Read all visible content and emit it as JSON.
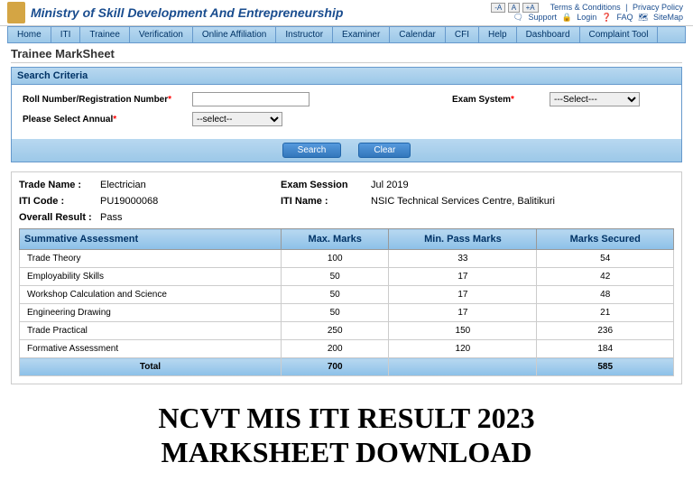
{
  "header": {
    "ministry": "Ministry of Skill Development And Entrepreneurship",
    "links": {
      "terms": "Terms & Conditions",
      "privacy": "Privacy Policy",
      "support": "Support",
      "login": "Login",
      "faq": "FAQ",
      "sitemap": "SiteMap"
    },
    "font_minus": "-A",
    "font_normal": "A",
    "font_plus": "+A"
  },
  "nav": {
    "items": [
      "Home",
      "ITI",
      "Trainee",
      "Verification",
      "Online Affiliation",
      "Instructor",
      "Examiner",
      "Calendar",
      "CFI",
      "Help",
      "Dashboard",
      "Complaint Tool"
    ]
  },
  "page": {
    "title": "Trainee MarkSheet"
  },
  "search": {
    "header": "Search Criteria",
    "roll_label": "Roll Number/Registration Number",
    "exam_label": "Exam System",
    "exam_placeholder": "---Select---",
    "annual_label": "Please Select Annual",
    "annual_placeholder": "--select--",
    "search_btn": "Search",
    "clear_btn": "Clear"
  },
  "result": {
    "trade_label": "Trade Name :",
    "trade_value": "Electrician",
    "session_label": "Exam Session",
    "session_value": "Jul 2019",
    "iti_code_label": "ITI Code :",
    "iti_code_value": "PU19000068",
    "iti_name_label": "ITI Name :",
    "iti_name_value": "NSIC Technical Services Centre, Balitikuri",
    "overall_label": "Overall Result :",
    "overall_value": "Pass"
  },
  "table": {
    "headers": {
      "subject": "Summative Assessment",
      "max": "Max. Marks",
      "min": "Min. Pass Marks",
      "secured": "Marks Secured"
    },
    "rows": [
      {
        "subject": "Trade Theory",
        "max": "100",
        "min": "33",
        "secured": "54"
      },
      {
        "subject": "Employability Skills",
        "max": "50",
        "min": "17",
        "secured": "42"
      },
      {
        "subject": "Workshop Calculation and Science",
        "max": "50",
        "min": "17",
        "secured": "48"
      },
      {
        "subject": "Engineering Drawing",
        "max": "50",
        "min": "17",
        "secured": "21"
      },
      {
        "subject": "Trade Practical",
        "max": "250",
        "min": "150",
        "secured": "236"
      },
      {
        "subject": "Formative Assessment",
        "max": "200",
        "min": "120",
        "secured": "184"
      }
    ],
    "total": {
      "label": "Total",
      "max": "700",
      "min": "",
      "secured": "585"
    }
  },
  "footer": {
    "line1": "NCVT MIS ITI RESULT 2023",
    "line2": "MARKSHEET DOWNLOAD"
  }
}
